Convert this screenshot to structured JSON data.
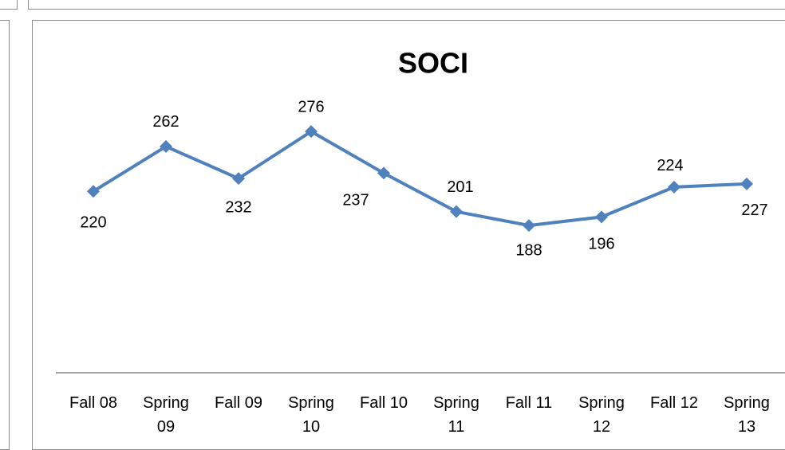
{
  "chart_data": {
    "type": "line",
    "title": "SOCI",
    "categories": [
      "Fall 08",
      "Spring 09",
      "Fall 09",
      "Spring 10",
      "Fall 10",
      "Spring 11",
      "Fall 11",
      "Spring 12",
      "Fall 12",
      "Spring 13"
    ],
    "series": [
      {
        "name": "SOCI",
        "color": "#4f81bd",
        "values": [
          220,
          262,
          232,
          276,
          237,
          201,
          188,
          196,
          224,
          227
        ]
      }
    ],
    "ylim": [
      50,
      300
    ]
  }
}
